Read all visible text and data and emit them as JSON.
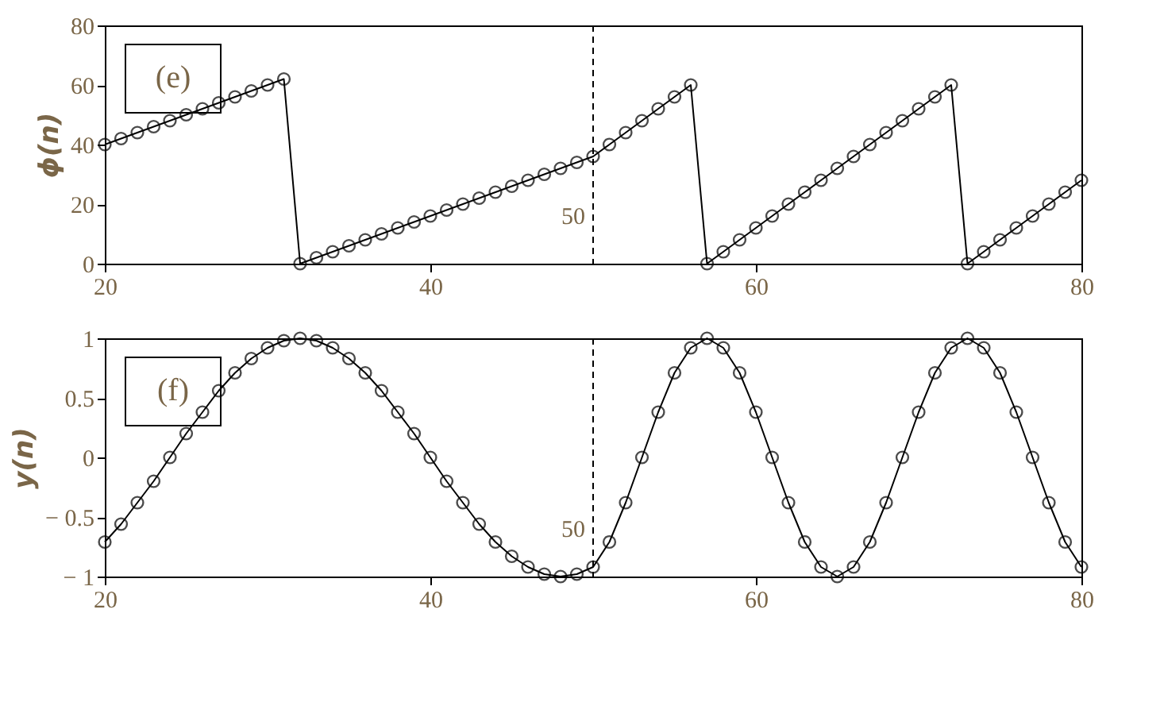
{
  "chart_data": [
    {
      "type": "line",
      "ylabel": "ϕ(n)",
      "annotations": [
        "(e)"
      ],
      "marker": "circle",
      "line_style": "solid",
      "grid": false,
      "x": [
        20,
        21,
        22,
        23,
        24,
        25,
        26,
        27,
        28,
        29,
        30,
        31,
        32,
        33,
        34,
        35,
        36,
        37,
        38,
        39,
        40,
        41,
        42,
        43,
        44,
        45,
        46,
        47,
        48,
        49,
        50,
        51,
        52,
        53,
        54,
        55,
        56,
        57,
        58,
        59,
        60,
        61,
        62,
        63,
        64,
        65,
        66,
        67,
        68,
        69,
        70,
        71,
        72,
        73,
        74,
        75,
        76,
        77,
        78,
        79,
        80
      ],
      "series": [
        {
          "color": "#000000",
          "values": [
            40,
            42,
            44,
            46,
            48,
            50,
            52,
            54,
            56,
            58,
            60,
            62,
            0,
            2,
            4,
            6,
            8,
            10,
            12,
            14,
            16,
            18,
            20,
            22,
            24,
            26,
            28,
            30,
            32,
            34,
            36,
            40,
            44,
            48,
            52,
            56,
            60,
            0,
            4,
            8,
            12,
            16,
            20,
            24,
            28,
            32,
            36,
            40,
            44,
            48,
            52,
            56,
            60,
            0,
            4,
            8,
            12,
            16,
            20,
            24,
            28
          ]
        }
      ],
      "xlim": [
        20,
        80
      ],
      "xticks": [
        20,
        40,
        60,
        80
      ],
      "ylim": [
        0,
        80
      ],
      "yticks": [
        0,
        20,
        40,
        60,
        80
      ],
      "ref_lines": [
        {
          "axis": "x",
          "value": 50,
          "label": "50",
          "line_style": "dashed",
          "color": "#000000"
        }
      ]
    },
    {
      "type": "line",
      "ylabel": "y(n)",
      "annotations": [
        "(f)"
      ],
      "marker": "circle",
      "line_style": "solid",
      "grid": false,
      "x": [
        20,
        21,
        22,
        23,
        24,
        25,
        26,
        27,
        28,
        29,
        30,
        31,
        32,
        33,
        34,
        35,
        36,
        37,
        38,
        39,
        40,
        41,
        42,
        43,
        44,
        45,
        46,
        47,
        48,
        49,
        50,
        51,
        52,
        53,
        54,
        55,
        56,
        57,
        58,
        59,
        60,
        61,
        62,
        63,
        64,
        65,
        66,
        67,
        68,
        69,
        70,
        71,
        72,
        73,
        74,
        75,
        76,
        77,
        78,
        79,
        80
      ],
      "series": [
        {
          "color": "#000000",
          "values": [
            -0.71,
            -0.56,
            -0.38,
            -0.2,
            0,
            0.2,
            0.38,
            0.56,
            0.71,
            0.83,
            0.92,
            0.98,
            1,
            0.98,
            0.92,
            0.83,
            0.71,
            0.56,
            0.38,
            0.2,
            0,
            -0.2,
            -0.38,
            -0.56,
            -0.71,
            -0.83,
            -0.92,
            -0.98,
            -1,
            -0.98,
            -0.92,
            -0.71,
            -0.38,
            0,
            0.38,
            0.71,
            0.92,
            1,
            0.92,
            0.71,
            0.38,
            0,
            -0.38,
            -0.71,
            -0.92,
            -1,
            -0.92,
            -0.71,
            -0.38,
            0,
            0.38,
            0.71,
            0.92,
            1,
            0.92,
            0.71,
            0.38,
            0,
            -0.38,
            -0.71,
            -0.92
          ]
        }
      ],
      "xlim": [
        20,
        80
      ],
      "xticks": [
        20,
        40,
        60,
        80
      ],
      "ylim": [
        -1,
        1
      ],
      "yticks": [
        {
          "value": -1,
          "label": "− 1"
        },
        {
          "value": -0.5,
          "label": "− 0.5"
        },
        0,
        0.5,
        1
      ],
      "ref_lines": [
        {
          "axis": "x",
          "value": 50,
          "label": "50",
          "line_style": "dashed",
          "color": "#000000"
        }
      ]
    }
  ]
}
